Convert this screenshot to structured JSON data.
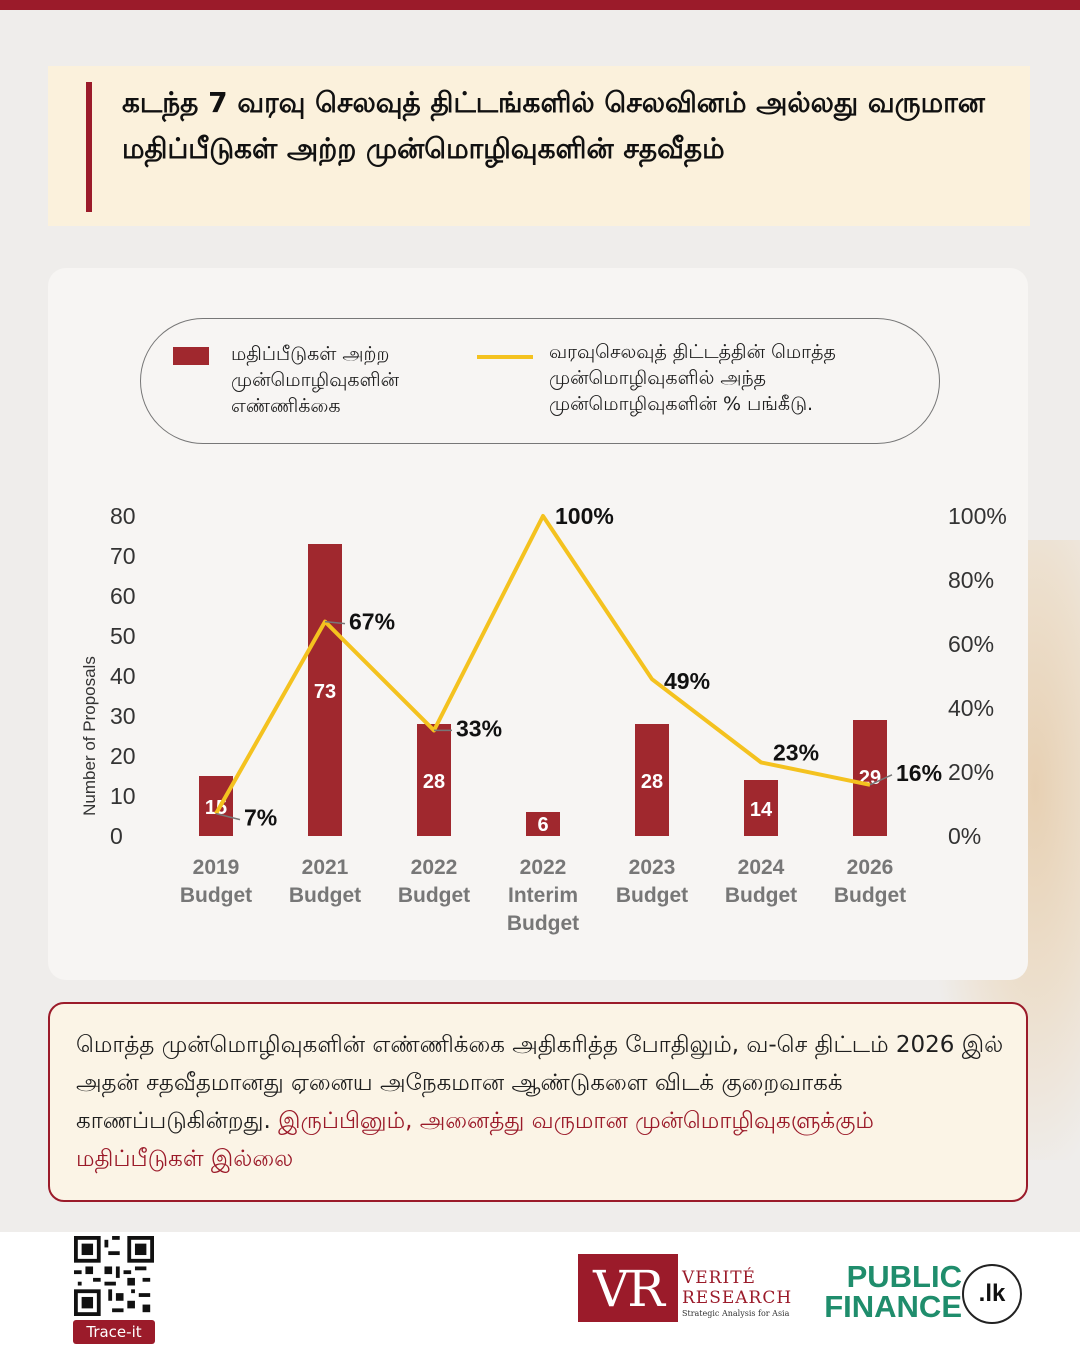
{
  "header": {
    "title": "கடந்த 7 வரவு செலவுத் திட்டங்களில் செலவினம் அல்லது வருமான மதிப்பீடுகள் அற்ற முன்மொழிவுகளின் சதவீதம்"
  },
  "legend": {
    "bar_label": "மதிப்பீடுகள் அற்ற முன்மொழிவுகளின் எண்ணிக்கை",
    "line_label": "வரவுசெலவுத் திட்டத்தின் மொத்த முன்மொழிவுகளில் அந்த முன்மொழிவுகளின் % பங்கீடு."
  },
  "chart_data": {
    "type": "bar",
    "categories": [
      [
        "2019",
        "Budget"
      ],
      [
        "2021",
        "Budget"
      ],
      [
        "2022",
        "Budget"
      ],
      [
        "2022",
        "Interim",
        "Budget"
      ],
      [
        "2023",
        "Budget"
      ],
      [
        "2024",
        "Budget"
      ],
      [
        "2026",
        "Budget"
      ]
    ],
    "bar_values": [
      15,
      73,
      28,
      6,
      28,
      14,
      29
    ],
    "line_values": [
      7,
      67,
      33,
      100,
      49,
      23,
      16
    ],
    "line_labels": [
      "7%",
      "67%",
      "33%",
      "100%",
      "49%",
      "23%",
      "16%"
    ],
    "ylabel": "Number of Proposals",
    "ylim": [
      0,
      80
    ],
    "y_ticks": [
      "0",
      "10",
      "20",
      "30",
      "40",
      "50",
      "60",
      "70",
      "80"
    ],
    "y2lim": [
      0,
      100
    ],
    "y2_ticks": [
      "0%",
      "20%",
      "40%",
      "60%",
      "80%",
      "100%"
    ],
    "bar_color": "#a0282e",
    "line_color": "#f4c21f",
    "grid": false,
    "legend_position": "top"
  },
  "summary": {
    "text": "மொத்த முன்மொழிவுகளின் எண்ணிக்கை அதிகரித்த போதிலும், வ-செ திட்டம் 2026 இல் அதன் சதவீதமானது ஏனைய அநேகமான ஆண்டுகளை விடக் குறைவாகக் காணப்படுகின்றது. ",
    "highlight": "இருப்பினும், அனைத்து வருமான முன்மொழிவுகளுக்கும் மதிப்பீடுகள் இல்லை"
  },
  "footer": {
    "qr_label": "Trace-it",
    "vr_mark": "VR",
    "vr_word1": "VERITÉ",
    "vr_word2": "RESEARCH",
    "vr_tagline": "Strategic Analysis for Asia",
    "pf_line1": "PUBLIC",
    "pf_line2": "FINANCE",
    "pf_badge": ".lk"
  },
  "colors": {
    "brand": "#9b1b2a",
    "accent": "#f4c21f",
    "pf_green": "#1f8d6c"
  }
}
